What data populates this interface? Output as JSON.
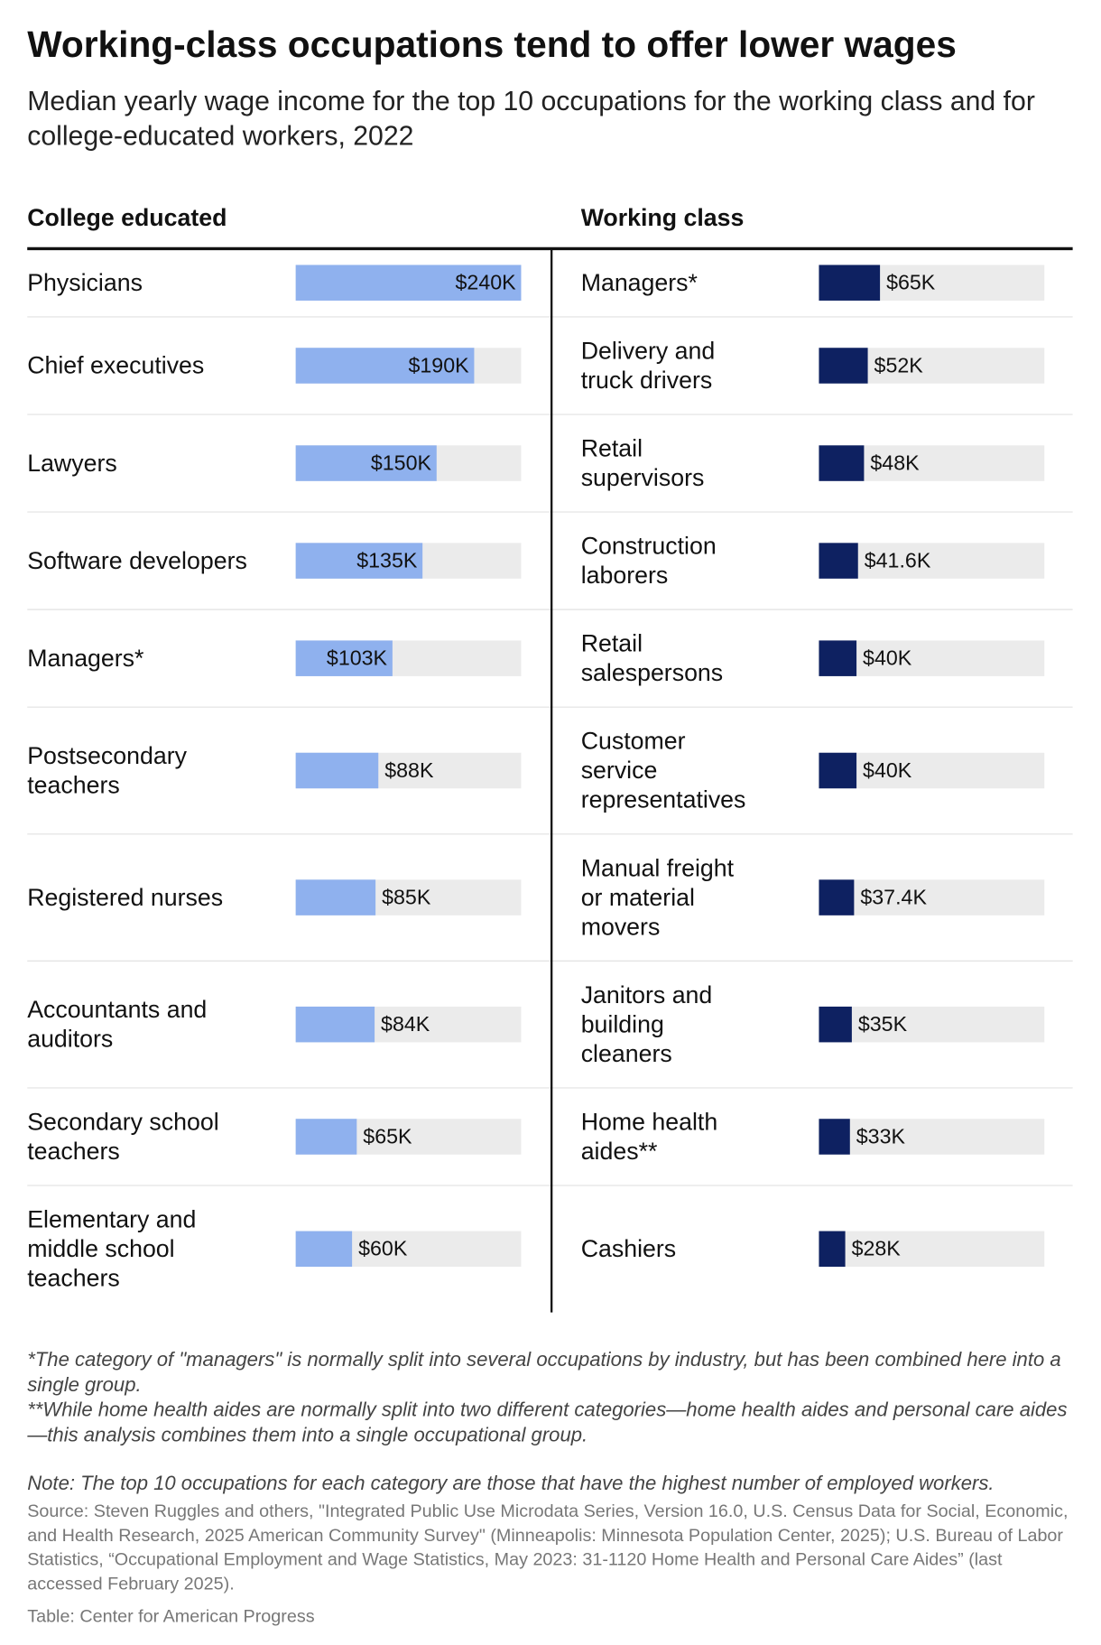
{
  "title": "Working-class occupations tend to offer lower wages",
  "subtitle": "Median yearly wage income for the top 10 occupations for the working class and for college-educated workers, 2022",
  "chart_data": [
    {
      "type": "bar",
      "orientation": "horizontal",
      "title": "College educated",
      "categories": [
        "Physicians",
        "Chief executives",
        "Lawyers",
        "Software developers",
        "Managers*",
        "Postsecondary teachers",
        "Registered nurses",
        "Accountants and auditors",
        "Secondary school teachers",
        "Elementary and middle school teachers"
      ],
      "values": [
        240000,
        190000,
        150000,
        135000,
        103000,
        88000,
        85000,
        84000,
        65000,
        60000
      ],
      "value_labels": [
        "$240K",
        "$190K",
        "$150K",
        "$135K",
        "$103K",
        "$88K",
        "$85K",
        "$84K",
        "$65K",
        "$60K"
      ],
      "color": "#8fb1ee",
      "background_color": "#ebebeb",
      "xlim": [
        0,
        240000
      ]
    },
    {
      "type": "bar",
      "orientation": "horizontal",
      "title": "Working class",
      "categories": [
        "Managers*",
        "Delivery and truck drivers",
        "Retail supervisors",
        "Construction laborers",
        "Retail salespersons",
        "Customer service representatives",
        "Manual freight or material movers",
        "Janitors and building cleaners",
        "Home health aides**",
        "Cashiers"
      ],
      "values": [
        65000,
        52000,
        48000,
        41600,
        40000,
        40000,
        37400,
        35000,
        33000,
        28000
      ],
      "value_labels": [
        "$65K",
        "$52K",
        "$48K",
        "$41.6K",
        "$40K",
        "$40K",
        "$37.4K",
        "$35K",
        "$33K",
        "$28K"
      ],
      "color": "#0e2161",
      "background_color": "#ebebeb",
      "xlim": [
        0,
        240000
      ]
    }
  ],
  "footnotes": [
    "*The category of \"managers\" is normally split into several occupations by industry, but has been combined here into a single group.",
    "**While home health aides are normally split into two different categories—home health aides and personal care aides—this analysis combines them into a single occupational group."
  ],
  "note": "Note: The top 10 occupations for each category are those that have the highest number of employed workers.",
  "source": "Source: Steven Ruggles and others, \"Integrated Public Use Microdata Series, Version 16.0, U.S. Census Data for Social, Economic, and Health Research, 2025 American Community Survey\" (Minneapolis: Minnesota Population Center, 2025); U.S. Bureau of Labor Statistics, “Occupational Employment and Wage Statistics, May 2023: 31-1120 Home Health and Personal Care Aides” (last accessed February 2025).",
  "credit": "Table: Center for American Progress"
}
